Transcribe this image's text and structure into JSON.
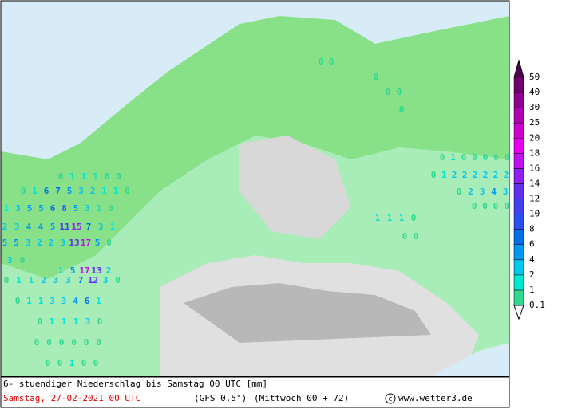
{
  "map": {
    "rows": [
      [
        0,
        1,
        1,
        1,
        0,
        0
      ],
      [
        0,
        1,
        6,
        7,
        5,
        3,
        2,
        1,
        1,
        0
      ],
      [
        1,
        3,
        5,
        5,
        6,
        8,
        5,
        3,
        1,
        0
      ],
      [
        2,
        3,
        4,
        4,
        5,
        11,
        15,
        7,
        3,
        1
      ],
      [
        5,
        5,
        3,
        2,
        2,
        3,
        13,
        17,
        5,
        0
      ],
      [
        3,
        0
      ],
      [
        1,
        5,
        17,
        13,
        2
      ],
      [
        0,
        1,
        1,
        2,
        3,
        3,
        7,
        12,
        3,
        0
      ],
      [
        0,
        1,
        1,
        3,
        3,
        4,
        6,
        1
      ],
      [
        0,
        1,
        1,
        1,
        3,
        0
      ],
      [
        0,
        0,
        0,
        0,
        0,
        0
      ],
      [
        0,
        0,
        1,
        0,
        0
      ],
      [
        0,
        0
      ],
      [
        0
      ],
      [
        0,
        0
      ],
      [
        0
      ],
      [
        0,
        1,
        0,
        0,
        0,
        0,
        0,
        0
      ],
      [
        0,
        1,
        2,
        2,
        2,
        2,
        2,
        2
      ],
      [
        0,
        2,
        3,
        4,
        3
      ],
      [
        0,
        0,
        0,
        0
      ],
      [
        1,
        1,
        1,
        0
      ],
      [
        0,
        0
      ]
    ]
  },
  "legend": {
    "levels": [
      0.1,
      1,
      2,
      4,
      6,
      8,
      10,
      12,
      14,
      16,
      18,
      20,
      25,
      30,
      40,
      50
    ],
    "colors": [
      "#30d890",
      "#00e8d0",
      "#00c8f0",
      "#0098f0",
      "#0070e8",
      "#2850f0",
      "#4040f0",
      "#6030f0",
      "#9020f0",
      "#c010f0",
      "#e800f0",
      "#d000d0",
      "#b000b0",
      "#900090",
      "#700070",
      "#500050"
    ]
  },
  "footer": {
    "title": "6- stuendiger Niederschlag bis Samstag 00 UTC [mm]",
    "date": "Samstag, 27-02-2021  00 UTC",
    "model": "(GFS 0.5°)",
    "run": "(Mittwoch 00 + 72)",
    "site": "www.wetter3.de"
  }
}
